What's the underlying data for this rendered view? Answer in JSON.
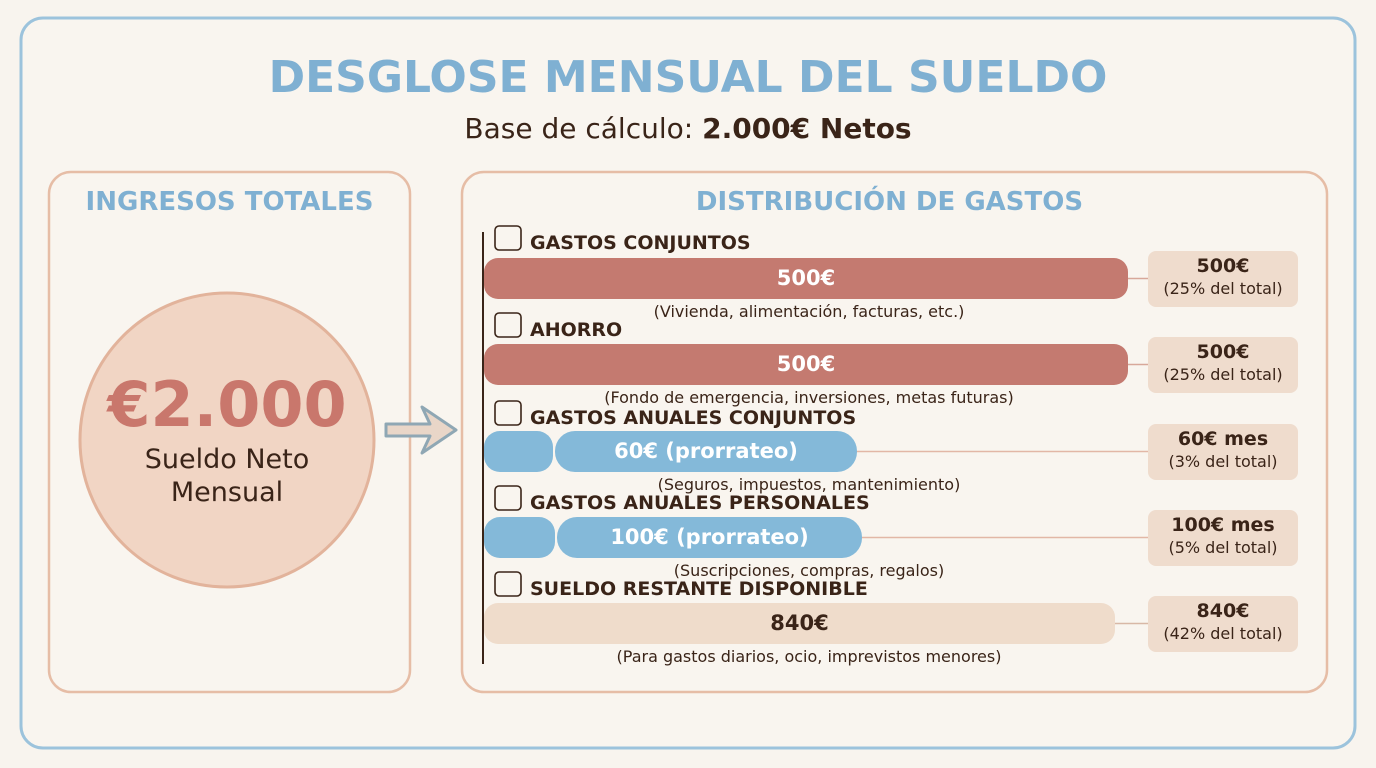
{
  "header": {
    "title": "DESGLOSE MENSUAL DEL SUELDO",
    "subtitle_prefix": "Base de cálculo:",
    "subtitle_bold": "2.000€ Netos"
  },
  "income": {
    "title": "INGRESOS TOTALES",
    "amount": "€2.000",
    "label_lines": [
      "Sueldo Neto",
      "Mensual"
    ]
  },
  "distribution": {
    "title": "DISTRIBUCIÓN DE GASTOS",
    "items": [
      {
        "title": "GASTOS CONJUNTOS",
        "bar_label": "500€",
        "note": "(Vivienda, alimentación, facturas, etc.)",
        "amount": "500€",
        "share": "(25% del total)"
      },
      {
        "title": "AHORRO",
        "bar_label": "500€",
        "note": "(Fondo de emergencia, inversiones, metas futuras)",
        "amount": "500€",
        "share": "(25% del total)"
      },
      {
        "title": "GASTOS ANUALES CONJUNTOS",
        "bar_label": "60€ (prorrateo)",
        "note": "(Seguros, impuestos, mantenimiento)",
        "amount": "60€ mes",
        "share": "(3% del total)"
      },
      {
        "title": "GASTOS ANUALES PERSONALES",
        "bar_label": "100€ (prorrateo)",
        "note": "(Suscripciones, compras, regalos)",
        "amount": "100€ mes",
        "share": "(5% del total)"
      },
      {
        "title": "SUELDO RESTANTE DISPONIBLE",
        "bar_label": "840€",
        "note": "(Para gastos diarios, ocio, imprevistos menores)",
        "amount": "840€",
        "share": "(42% del total)"
      }
    ]
  }
}
